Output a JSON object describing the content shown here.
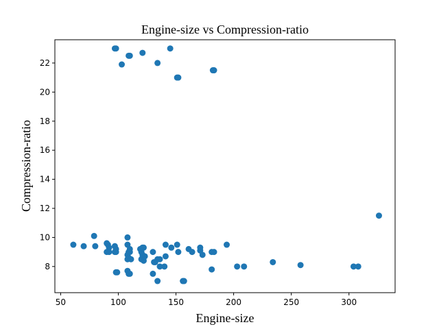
{
  "chart_data": {
    "type": "scatter",
    "title": "Engine-size vs Compression-ratio",
    "xlabel": "Engine-size",
    "ylabel": "Compression-ratio",
    "xlim": [
      45,
      340
    ],
    "ylim": [
      6.2,
      23.6
    ],
    "xticks": [
      50,
      100,
      150,
      200,
      250,
      300
    ],
    "yticks": [
      8,
      10,
      12,
      14,
      16,
      18,
      20,
      22
    ],
    "grid": false,
    "legend": "none",
    "marker_color": "#1f77b4",
    "series": [
      {
        "points": [
          [
            61,
            9.5
          ],
          [
            70,
            9.4
          ],
          [
            79,
            10.1
          ],
          [
            80,
            9.4
          ],
          [
            90,
            9.6
          ],
          [
            91,
            9.5
          ],
          [
            92,
            9.3
          ],
          [
            90,
            9.0
          ],
          [
            92,
            9.0
          ],
          [
            97,
            9.4
          ],
          [
            98,
            9.2
          ],
          [
            98,
            9.0
          ],
          [
            97,
            9.0
          ],
          [
            98,
            7.6
          ],
          [
            99,
            7.6
          ],
          [
            97,
            23.0
          ],
          [
            98,
            23.0
          ],
          [
            103,
            21.9
          ],
          [
            110,
            22.5
          ],
          [
            109,
            22.5
          ],
          [
            121,
            22.7
          ],
          [
            134,
            22.0
          ],
          [
            145,
            23.0
          ],
          [
            151,
            21.0
          ],
          [
            152,
            21.0
          ],
          [
            183,
            21.5
          ],
          [
            182,
            21.5
          ],
          [
            108,
            10.0
          ],
          [
            108,
            9.5
          ],
          [
            109,
            9.0
          ],
          [
            110,
            9.0
          ],
          [
            108,
            8.8
          ],
          [
            109,
            8.6
          ],
          [
            108,
            8.5
          ],
          [
            111,
            8.5
          ],
          [
            110,
            9.2
          ],
          [
            108,
            7.7
          ],
          [
            109,
            7.5
          ],
          [
            110,
            7.5
          ],
          [
            119,
            9.2
          ],
          [
            121,
            9.3
          ],
          [
            122,
            9.3
          ],
          [
            120,
            9.0
          ],
          [
            121,
            8.8
          ],
          [
            120,
            8.5
          ],
          [
            122,
            8.4
          ],
          [
            121,
            8.6
          ],
          [
            123,
            8.7
          ],
          [
            130,
            9.0
          ],
          [
            131,
            8.3
          ],
          [
            132,
            8.3
          ],
          [
            130,
            7.5
          ],
          [
            134,
            8.5
          ],
          [
            136,
            8.0
          ],
          [
            136,
            8.5
          ],
          [
            140,
            8.0
          ],
          [
            141,
            8.7
          ],
          [
            141,
            9.5
          ],
          [
            146,
            9.3
          ],
          [
            151,
            9.5
          ],
          [
            152,
            9.0
          ],
          [
            134,
            7.0
          ],
          [
            156,
            7.0
          ],
          [
            157,
            7.0
          ],
          [
            161,
            9.2
          ],
          [
            164,
            9.0
          ],
          [
            171,
            9.3
          ],
          [
            171,
            9.1
          ],
          [
            173,
            8.8
          ],
          [
            181,
            9.0
          ],
          [
            183,
            9.0
          ],
          [
            181,
            7.8
          ],
          [
            194,
            9.5
          ],
          [
            203,
            8.0
          ],
          [
            209,
            8.0
          ],
          [
            234,
            8.3
          ],
          [
            258,
            8.1
          ],
          [
            304,
            8.0
          ],
          [
            308,
            8.0
          ],
          [
            326,
            11.5
          ]
        ]
      }
    ]
  }
}
